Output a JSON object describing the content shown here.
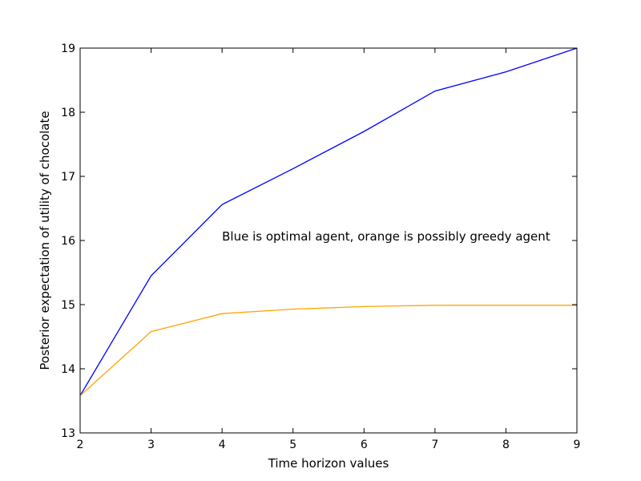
{
  "chart_data": {
    "type": "line",
    "title": "",
    "xlabel": "Time horizon values",
    "ylabel": "Posterior expectation of utility of chocolate",
    "xlim": [
      2,
      9
    ],
    "ylim": [
      13,
      19
    ],
    "x_ticks": [
      2,
      3,
      4,
      5,
      6,
      7,
      8,
      9
    ],
    "y_ticks": [
      13,
      14,
      15,
      16,
      17,
      18,
      19
    ],
    "x": [
      2,
      3,
      4,
      5,
      6,
      7,
      8,
      9
    ],
    "series": [
      {
        "values": [
          13.58,
          15.45,
          16.56,
          17.12,
          17.7,
          18.33,
          18.63,
          19.0
        ],
        "color": "#0000ff"
      },
      {
        "values": [
          13.58,
          14.58,
          14.86,
          14.93,
          14.97,
          14.99,
          14.99,
          14.99
        ],
        "color": "#ffa500"
      }
    ],
    "annotations": [
      {
        "text": "Blue is optimal agent, orange is possibly greedy agent",
        "x": 4,
        "y": 16
      }
    ],
    "grid": false,
    "legend": "none"
  }
}
